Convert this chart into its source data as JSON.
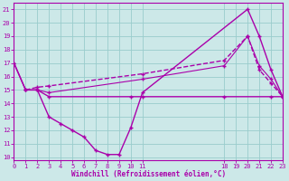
{
  "background_color": "#cce8e8",
  "line_color": "#aa00aa",
  "grid_color": "#99cccc",
  "lines": [
    {
      "x": [
        0,
        1,
        2,
        3,
        10,
        11,
        18,
        22,
        23
      ],
      "y": [
        17,
        15,
        15,
        14.5,
        14.5,
        14.5,
        14.5,
        14.5,
        14.5
      ],
      "style": "-",
      "lw": 1.0
    },
    {
      "x": [
        0,
        1,
        2,
        3,
        4,
        5,
        6,
        7,
        8,
        9,
        10,
        11,
        20,
        21,
        22,
        23
      ],
      "y": [
        17,
        15,
        15,
        13,
        12.5,
        12,
        11.5,
        10.5,
        10.2,
        10.2,
        12.2,
        14.8,
        21,
        19,
        16.5,
        14.5
      ],
      "style": "-",
      "lw": 1.0
    },
    {
      "x": [
        1,
        2,
        3,
        11,
        18,
        20,
        21,
        22,
        23
      ],
      "y": [
        15,
        15.2,
        15.3,
        16.2,
        17.2,
        19,
        16.5,
        15.5,
        14.5
      ],
      "style": "--",
      "lw": 1.0
    },
    {
      "x": [
        2,
        3,
        11,
        18,
        20,
        21,
        22,
        23
      ],
      "y": [
        15,
        14.8,
        15.8,
        16.8,
        19,
        16.8,
        15.8,
        14.5
      ],
      "style": "-",
      "lw": 0.8
    }
  ],
  "xlim": [
    0,
    23
  ],
  "ylim": [
    9.8,
    21.5
  ],
  "xticks": [
    0,
    1,
    2,
    3,
    4,
    5,
    6,
    7,
    8,
    9,
    10,
    11,
    18,
    19,
    20,
    21,
    22,
    23
  ],
  "yticks": [
    10,
    11,
    12,
    13,
    14,
    15,
    16,
    17,
    18,
    19,
    20,
    21
  ],
  "xlabel": "Windchill (Refroidissement éolien,°C)",
  "marker": "+"
}
